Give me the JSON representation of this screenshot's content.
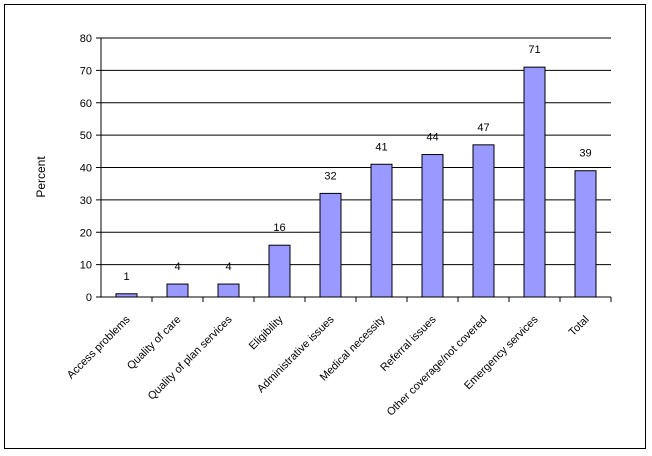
{
  "chart_data": {
    "type": "bar",
    "title": "",
    "xlabel": "",
    "ylabel": "Percent",
    "ylim": [
      0,
      80
    ],
    "yticks": [
      0,
      10,
      20,
      30,
      40,
      50,
      60,
      70,
      80
    ],
    "grid": true,
    "legend": "none",
    "bar_color": "#9999ff",
    "categories": [
      "Access problems",
      "Quality of care",
      "Quality of plan services",
      "Eligibility",
      "Administrative issues",
      "Medical necessity",
      "Referral issues",
      "Other coverage/not covered",
      "Emergency services",
      "Total"
    ],
    "values": [
      1,
      4,
      4,
      16,
      32,
      41,
      44,
      47,
      71,
      39
    ],
    "data_labels": [
      "1",
      "4",
      "4",
      "16",
      "32",
      "41",
      "44",
      "47",
      "71",
      "39"
    ]
  }
}
